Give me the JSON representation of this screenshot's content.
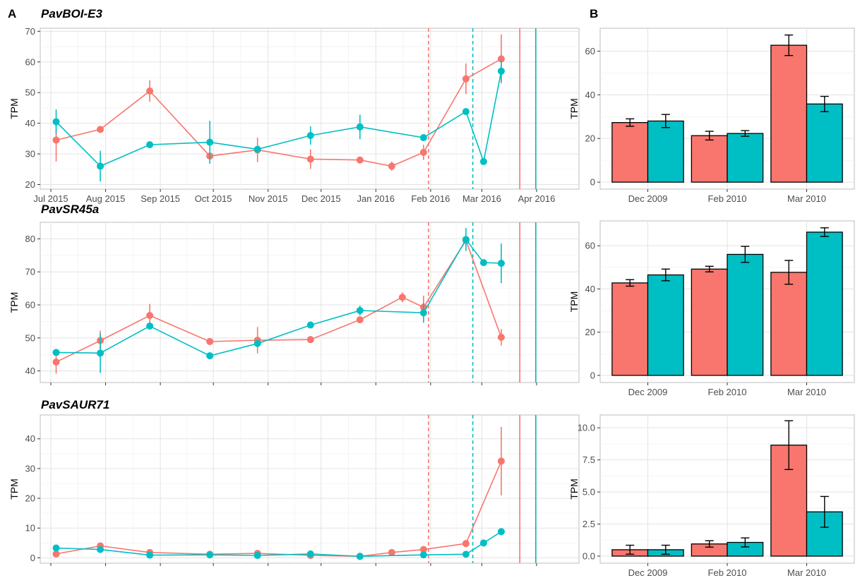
{
  "labels": {
    "panel_a": "A",
    "panel_b": "B"
  },
  "colors": {
    "red": "#F8766D",
    "teal": "#00BFC4",
    "grid_major": "#e3e3e3",
    "grid_minor": "#f2f2f2",
    "border": "#bdbdbd"
  },
  "chart_data": [
    {
      "type": "line",
      "title": "PavBOI-E3",
      "ylabel": "TPM",
      "xlabel": "",
      "x_tick_labels": [
        "Jul 2015",
        "Aug 2015",
        "Sep 2015",
        "Oct 2015",
        "Nov 2015",
        "Dec 2015",
        "Jan 2016",
        "Feb 2016",
        "Mar 2016",
        "Apr 2016"
      ],
      "x_tick_values": [
        0,
        31,
        62,
        92,
        123,
        153,
        184,
        215,
        244,
        275
      ],
      "xlim": [
        -6,
        299
      ],
      "ylim": [
        18.5,
        71
      ],
      "y_ticks": [
        20,
        30,
        40,
        50,
        60,
        70
      ],
      "grid": true,
      "vlines": [
        {
          "x": 213.8,
          "color": "red",
          "style": "dashed"
        },
        {
          "x": 238.9,
          "color": "teal",
          "style": "dashed"
        },
        {
          "x": 265.5,
          "color": "red",
          "style": "solid"
        },
        {
          "x": 274.5,
          "color": "teal",
          "style": "solid"
        }
      ],
      "series": [
        {
          "color": "red",
          "x": [
            3,
            28,
            56,
            90,
            117,
            147,
            175,
            193,
            211,
            235,
            255
          ],
          "y": [
            34.5,
            38,
            50.5,
            29.3,
            31.3,
            28.3,
            28,
            26,
            30.5,
            54.5,
            61
          ],
          "err": [
            7,
            0.8,
            3.5,
            0,
            4,
            3.2,
            0,
            1.5,
            2.5,
            5,
            8
          ]
        },
        {
          "color": "teal",
          "x": [
            3,
            28,
            56,
            90,
            117,
            147,
            175,
            211,
            235,
            245,
            255
          ],
          "y": [
            40.5,
            26,
            33,
            33.8,
            31.5,
            36,
            38.8,
            35.3,
            43.8,
            27.5,
            57
          ],
          "err": [
            4,
            5,
            0,
            7,
            0,
            3,
            4,
            0,
            0,
            0,
            3.5
          ]
        }
      ]
    },
    {
      "type": "line",
      "title": "PavSR45a",
      "ylabel": "TPM",
      "xlabel": "",
      "x_tick_values": [
        0,
        31,
        62,
        92,
        123,
        153,
        184,
        215,
        244,
        275
      ],
      "xlim": [
        -6,
        299
      ],
      "ylim": [
        36.5,
        85
      ],
      "y_ticks": [
        40,
        50,
        60,
        70,
        80
      ],
      "grid": true,
      "vlines": [
        {
          "x": 213.8,
          "color": "red",
          "style": "dashed"
        },
        {
          "x": 238.9,
          "color": "teal",
          "style": "dashed"
        },
        {
          "x": 265.5,
          "color": "red",
          "style": "solid"
        },
        {
          "x": 274.5,
          "color": "teal",
          "style": "solid"
        }
      ],
      "series": [
        {
          "color": "red",
          "x": [
            3,
            28,
            56,
            90,
            117,
            147,
            175,
            199,
            211,
            235,
            255
          ],
          "y": [
            42.7,
            49.2,
            56.8,
            48.9,
            49.3,
            49.5,
            55.5,
            62.3,
            59.3,
            79.5,
            50.2
          ],
          "err": [
            3.5,
            3,
            3.5,
            0,
            4,
            0,
            0,
            1.5,
            3.5,
            0,
            2.5
          ]
        },
        {
          "color": "teal",
          "x": [
            3,
            28,
            56,
            90,
            117,
            147,
            175,
            211,
            235,
            245,
            255
          ],
          "y": [
            45.6,
            45.4,
            53.6,
            44.6,
            48.3,
            53.9,
            58.3,
            57.6,
            79.8,
            72.8,
            72.6
          ],
          "err": [
            0,
            6,
            0,
            0.7,
            0,
            0,
            1.5,
            3,
            3.5,
            0,
            6
          ]
        }
      ]
    },
    {
      "type": "line",
      "title": "PavSAUR71",
      "ylabel": "TPM",
      "xlabel": "",
      "x_tick_values": [
        0,
        31,
        62,
        92,
        123,
        153,
        184,
        215,
        244,
        275
      ],
      "xlim": [
        -6,
        299
      ],
      "ylim": [
        -1.8,
        48
      ],
      "y_ticks": [
        0,
        10,
        20,
        30,
        40
      ],
      "grid": true,
      "vlines": [
        {
          "x": 213.8,
          "color": "red",
          "style": "dashed"
        },
        {
          "x": 238.9,
          "color": "teal",
          "style": "dashed"
        },
        {
          "x": 265.5,
          "color": "red",
          "style": "solid"
        },
        {
          "x": 274.5,
          "color": "teal",
          "style": "solid"
        }
      ],
      "series": [
        {
          "color": "red",
          "x": [
            3,
            28,
            56,
            90,
            117,
            147,
            175,
            193,
            211,
            235,
            255
          ],
          "y": [
            1.3,
            4,
            1.8,
            1.2,
            1.5,
            0.8,
            0.5,
            1.8,
            2.8,
            4.8,
            32.5
          ],
          "err": [
            0,
            0.8,
            0,
            0,
            0.5,
            0,
            0,
            0,
            0,
            0,
            11.5
          ]
        },
        {
          "color": "teal",
          "x": [
            3,
            28,
            56,
            90,
            117,
            147,
            175,
            211,
            235,
            245,
            255
          ],
          "y": [
            3.3,
            2.8,
            0.9,
            1,
            0.8,
            1.3,
            0.5,
            1,
            1.2,
            5,
            8.8
          ],
          "err": [
            0,
            0,
            0,
            0,
            0,
            0,
            0,
            0,
            0,
            0,
            0
          ]
        }
      ]
    },
    {
      "type": "bar",
      "ylabel": "TPM",
      "categories": [
        "Dec 2009",
        "Feb 2010",
        "Mar 2010"
      ],
      "ylim": [
        -3.2,
        70.5
      ],
      "y_ticks": [
        0,
        20,
        40,
        60
      ],
      "y_tick_labels": [
        "0",
        "20",
        "40",
        "60"
      ],
      "grid": true,
      "series": [
        {
          "color": "red",
          "values": [
            27.3,
            21.3,
            62.7
          ],
          "err": [
            1.7,
            2,
            4.7
          ]
        },
        {
          "color": "teal",
          "values": [
            28,
            22.3,
            35.8
          ],
          "err": [
            3,
            1.3,
            3.5
          ]
        }
      ]
    },
    {
      "type": "bar",
      "ylabel": "TPM",
      "categories": [
        "Dec 2009",
        "Feb 2010",
        "Mar 2010"
      ],
      "ylim": [
        -3.3,
        71.5
      ],
      "y_ticks": [
        0,
        20,
        40,
        60
      ],
      "y_tick_labels": [
        "0",
        "20",
        "40",
        "60"
      ],
      "grid": true,
      "series": [
        {
          "color": "red",
          "values": [
            42.8,
            49.2,
            47.7
          ],
          "err": [
            1.5,
            1.3,
            5.5
          ]
        },
        {
          "color": "teal",
          "values": [
            46.5,
            56,
            66.3
          ],
          "err": [
            2.7,
            3.7,
            2
          ]
        }
      ]
    },
    {
      "type": "bar",
      "ylabel": "TPM",
      "categories": [
        "Dec 2009",
        "Feb 2010",
        "Mar 2010"
      ],
      "ylim": [
        -0.55,
        11.0
      ],
      "y_ticks": [
        0,
        2.5,
        5,
        7.5,
        10
      ],
      "y_tick_labels": [
        "0.0",
        "2.5",
        "5.0",
        "7.5",
        "10.0"
      ],
      "grid": true,
      "series": [
        {
          "color": "red",
          "values": [
            0.5,
            0.95,
            8.65
          ],
          "err": [
            0.35,
            0.25,
            1.9
          ]
        },
        {
          "color": "teal",
          "values": [
            0.5,
            1.07,
            3.45
          ],
          "err": [
            0.35,
            0.35,
            1.2
          ]
        }
      ]
    }
  ]
}
